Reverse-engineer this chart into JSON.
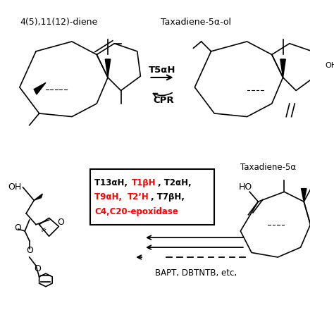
{
  "bg_color": "#ffffff",
  "title_top_left": "4(5),11(12)-diene",
  "title_top_right": "Taxadiene-5α-ol",
  "title_bottom_right": "Taxadiene-5α",
  "arrow_label_top": "T5αH",
  "arrow_label_top2": "CPR",
  "bottom_label": "BAPT, DBTNTB, etc,",
  "label_HO_bottom_right": "HO",
  "label_OH_top_left": "OH"
}
